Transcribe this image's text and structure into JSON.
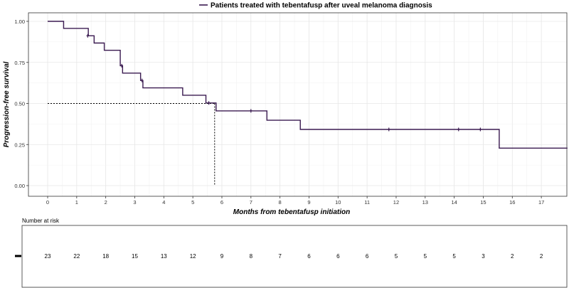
{
  "chart_data": {
    "type": "line",
    "title": "",
    "legend": {
      "position": "top",
      "entries": [
        "Patients treated with tebentafusp after uveal melanoma diagnosis"
      ]
    },
    "xlabel": "Months from tebentafusp initiation",
    "ylabel": "Progression-free survival",
    "xlim": [
      -0.6,
      17.9
    ],
    "ylim": [
      -0.05,
      1.05
    ],
    "x_ticks": [
      0,
      1,
      2,
      3,
      4,
      5,
      6,
      7,
      8,
      9,
      10,
      11,
      12,
      13,
      14,
      15,
      16,
      17
    ],
    "y_ticks": [
      0.0,
      0.25,
      0.5,
      0.75,
      1.0
    ],
    "y_tick_labels": [
      "0.00",
      "0.25",
      "0.50",
      "0.75",
      "1.00"
    ],
    "grid": true,
    "series": [
      {
        "name": "Patients treated with tebentafusp after uveal melanoma diagnosis",
        "color": "#3a1a50",
        "steps": [
          {
            "x": 0.0,
            "y": 1.0
          },
          {
            "x": 0.55,
            "y": 0.957
          },
          {
            "x": 1.4,
            "y": 0.912
          },
          {
            "x": 1.6,
            "y": 0.868
          },
          {
            "x": 1.95,
            "y": 0.824
          },
          {
            "x": 2.5,
            "y": 0.73
          },
          {
            "x": 2.58,
            "y": 0.685
          },
          {
            "x": 3.2,
            "y": 0.64
          },
          {
            "x": 3.28,
            "y": 0.595
          },
          {
            "x": 4.65,
            "y": 0.55
          },
          {
            "x": 5.45,
            "y": 0.503
          },
          {
            "x": 5.8,
            "y": 0.455
          },
          {
            "x": 7.55,
            "y": 0.398
          },
          {
            "x": 8.7,
            "y": 0.342
          },
          {
            "x": 15.55,
            "y": 0.228
          },
          {
            "x": 17.9,
            "y": 0.228
          }
        ],
        "censored": [
          {
            "x": 1.38,
            "y": 0.912
          },
          {
            "x": 2.55,
            "y": 0.73
          },
          {
            "x": 3.25,
            "y": 0.64
          },
          {
            "x": 5.55,
            "y": 0.503
          },
          {
            "x": 7.0,
            "y": 0.455
          },
          {
            "x": 11.75,
            "y": 0.342
          },
          {
            "x": 14.15,
            "y": 0.342
          },
          {
            "x": 14.9,
            "y": 0.342
          }
        ]
      }
    ],
    "median": {
      "x": 5.75,
      "y": 0.5
    },
    "risk_table": {
      "title": "Number at risk",
      "times": [
        0,
        1,
        2,
        3,
        4,
        5,
        6,
        7,
        8,
        9,
        10,
        11,
        12,
        13,
        14,
        15,
        16,
        17
      ],
      "counts": [
        "23",
        "22",
        "18",
        "15",
        "13",
        "12",
        "9",
        "8",
        "7",
        "6",
        "6",
        "6",
        "5",
        "5",
        "5",
        "3",
        "2",
        "2"
      ]
    }
  }
}
